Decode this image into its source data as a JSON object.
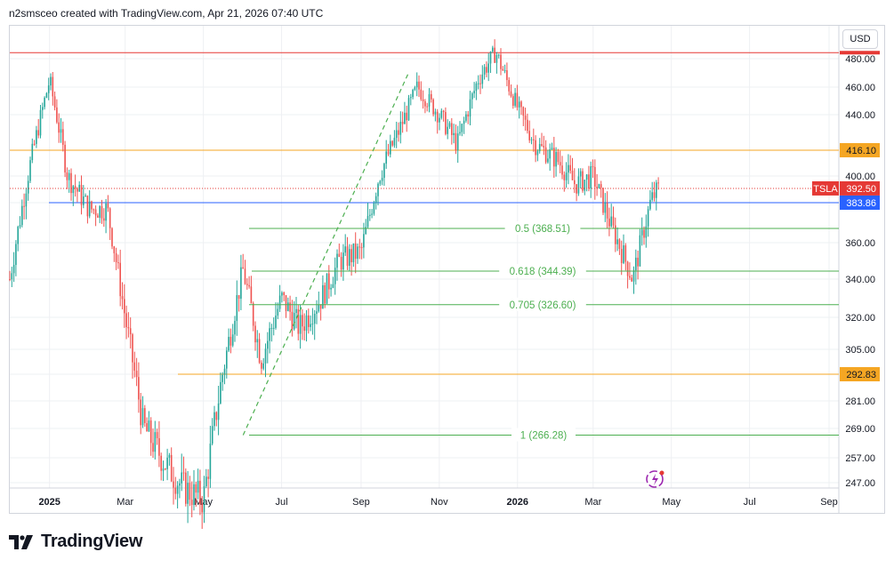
{
  "header": {
    "attribution": "n2smsceo created with TradingView.com, Apr 21, 2026 07:40 UTC"
  },
  "currency": "USD",
  "footer": {
    "brand": "TradingView"
  },
  "colors": {
    "up": "#26a69a",
    "down": "#ef5350",
    "grid": "#eef0f3",
    "fib": "#4caf50",
    "orange_level": "#f5a623",
    "red_level": "#e53935",
    "blue_level": "#2962ff",
    "price_line": "#e53935",
    "axis_text": "#131722"
  },
  "chart_data": {
    "type": "candlestick",
    "symbol": "TSLA",
    "y_ticks": [
      247.0,
      257.0,
      269.0,
      281.0,
      292.83,
      305.0,
      320.0,
      340.0,
      360.0,
      383.86,
      400.0,
      416.1,
      440.0,
      460.0,
      480.0
    ],
    "x_ticks": [
      "2025",
      "Mar",
      "May",
      "Jul",
      "Sep",
      "Nov",
      "2026",
      "Mar",
      "May",
      "Jul",
      "Sep"
    ],
    "price_labels": [
      {
        "symbol": "TSLA",
        "value": "392.50",
        "color": "#e53935"
      },
      {
        "value": "416.10",
        "color": "#f5a623"
      },
      {
        "value": "383.86",
        "color": "#2962ff"
      },
      {
        "value": "292.83",
        "color": "#f5a623"
      }
    ],
    "horizontal_levels": [
      {
        "value": 484.5,
        "color": "#e53935"
      },
      {
        "value": 416.1,
        "color": "#f5a623"
      },
      {
        "value": 383.86,
        "color": "#2962ff"
      },
      {
        "value": 292.83,
        "color": "#f5a623"
      }
    ],
    "fib_levels": [
      {
        "ratio": "0.5",
        "value": 368.51,
        "label": "0.5 (368.51)"
      },
      {
        "ratio": "0.618",
        "value": 344.39,
        "label": "0.618 (344.39)"
      },
      {
        "ratio": "0.705",
        "value": 326.6,
        "label": "0.705 (326.60)"
      },
      {
        "ratio": "1",
        "value": 266.28,
        "label": "1 (266.28)"
      }
    ],
    "trend_line": {
      "from": {
        "date": "2025-06-01",
        "value": 266.28
      },
      "to": {
        "date": "2025-10-08",
        "value": 470.0
      }
    },
    "current_price": 392.5,
    "price_series_dates": [
      "2024-12-01",
      "2024-12-15",
      "2025-01-01",
      "2025-01-15",
      "2025-02-01",
      "2025-02-15",
      "2025-03-01",
      "2025-03-15",
      "2025-04-01",
      "2025-04-15",
      "2025-05-01",
      "2025-05-15",
      "2025-06-01",
      "2025-06-15",
      "2025-07-01",
      "2025-07-15",
      "2025-08-01",
      "2025-08-15",
      "2025-09-01",
      "2025-09-15",
      "2025-10-01",
      "2025-10-15",
      "2025-11-01",
      "2025-11-15",
      "2025-12-01",
      "2025-12-15",
      "2026-01-01",
      "2026-01-15",
      "2026-02-01",
      "2026-02-15",
      "2026-03-01",
      "2026-03-15",
      "2026-04-01",
      "2026-04-15",
      "2026-04-21"
    ],
    "price_series_values": [
      340,
      400,
      465,
      400,
      380,
      380,
      320,
      270,
      255,
      245,
      240,
      290,
      345,
      300,
      330,
      315,
      330,
      350,
      355,
      400,
      430,
      460,
      440,
      420,
      465,
      485,
      445,
      420,
      410,
      395,
      400,
      370,
      340,
      385,
      392.5
    ]
  }
}
